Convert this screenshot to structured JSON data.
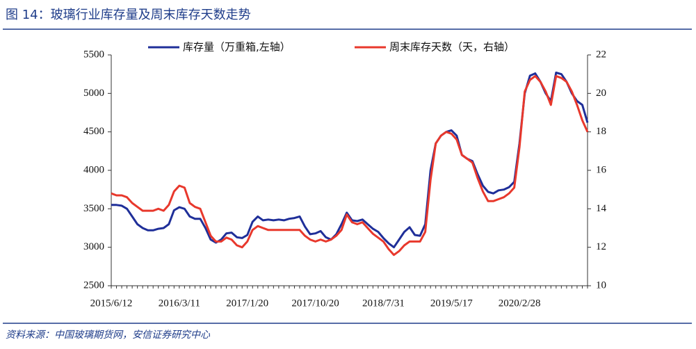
{
  "chart_data": {
    "type": "line",
    "title": "图 14：玻璃行业库存量及周末库存天数走势",
    "source": "资料来源：中国玻璃期货网，安信证券研究中心",
    "categories": [
      "2015/6/12",
      null,
      null,
      null,
      null,
      null,
      null,
      null,
      null,
      null,
      null,
      null,
      null,
      "2016/3/11",
      null,
      null,
      null,
      null,
      null,
      null,
      null,
      null,
      null,
      null,
      null,
      null,
      "2017/1/20",
      null,
      null,
      null,
      null,
      null,
      null,
      null,
      null,
      null,
      null,
      null,
      null,
      "2017/10/20",
      null,
      null,
      null,
      null,
      null,
      null,
      null,
      null,
      null,
      null,
      null,
      null,
      "2018/7/31",
      null,
      null,
      null,
      null,
      null,
      null,
      null,
      null,
      null,
      null,
      null,
      null,
      "2019/5/17",
      null,
      null,
      null,
      null,
      null,
      null,
      null,
      null,
      null,
      null,
      null,
      null,
      "2020/2/28",
      null,
      null,
      null,
      null,
      null,
      null,
      null,
      null,
      null,
      null,
      null,
      null,
      null
    ],
    "series": [
      {
        "name": "库存量（万重箱,左轴）",
        "color": "#1f2f99",
        "axis": "y",
        "values": [
          3550,
          3550,
          3540,
          3500,
          3400,
          3300,
          3250,
          3220,
          3220,
          3240,
          3250,
          3300,
          3480,
          3520,
          3500,
          3400,
          3370,
          3370,
          3250,
          3100,
          3060,
          3100,
          3180,
          3190,
          3130,
          3120,
          3160,
          3330,
          3400,
          3350,
          3360,
          3350,
          3360,
          3350,
          3370,
          3380,
          3400,
          3270,
          3170,
          3180,
          3210,
          3130,
          3100,
          3170,
          3300,
          3450,
          3350,
          3340,
          3360,
          3300,
          3240,
          3200,
          3120,
          3050,
          3000,
          3100,
          3200,
          3260,
          3160,
          3150,
          3300,
          4000,
          4350,
          4450,
          4500,
          4520,
          4450,
          4200,
          4150,
          4120,
          3950,
          3800,
          3720,
          3700,
          3740,
          3750,
          3780,
          3850,
          4350,
          5000,
          5230,
          5260,
          5150,
          5000,
          4900,
          5270,
          5250,
          5150,
          5000,
          4900,
          4850,
          4620
        ]
      },
      {
        "name": "周末库存天数（天，右轴）",
        "color": "#e8382c",
        "axis": "y2",
        "values": [
          14.8,
          14.7,
          14.7,
          14.6,
          14.3,
          14.1,
          13.9,
          13.9,
          13.9,
          14.0,
          13.9,
          14.2,
          14.9,
          15.2,
          15.1,
          14.3,
          14.1,
          14.0,
          13.3,
          12.6,
          12.3,
          12.3,
          12.5,
          12.4,
          12.1,
          12.0,
          12.3,
          12.9,
          13.1,
          13.0,
          12.9,
          12.9,
          12.9,
          12.9,
          12.9,
          12.9,
          12.9,
          12.6,
          12.4,
          12.3,
          12.4,
          12.3,
          12.4,
          12.6,
          12.9,
          13.7,
          13.3,
          13.2,
          13.3,
          13.0,
          12.7,
          12.5,
          12.3,
          11.9,
          11.6,
          11.8,
          12.1,
          12.3,
          12.3,
          12.3,
          12.8,
          15.5,
          17.4,
          17.8,
          18.0,
          17.9,
          17.6,
          16.8,
          16.6,
          16.4,
          15.6,
          14.9,
          14.4,
          14.4,
          14.5,
          14.6,
          14.8,
          15.1,
          17.2,
          20.1,
          20.7,
          20.9,
          20.6,
          20.1,
          19.4,
          20.9,
          20.8,
          20.6,
          20.1,
          19.4,
          18.6,
          18.0
        ]
      }
    ],
    "ylim": [
      2500,
      5500
    ],
    "yticks": [
      2500,
      3000,
      3500,
      4000,
      4500,
      5000,
      5500
    ],
    "y2lim": [
      10,
      22
    ],
    "y2ticks": [
      10,
      12,
      14,
      16,
      18,
      20,
      22
    ]
  }
}
